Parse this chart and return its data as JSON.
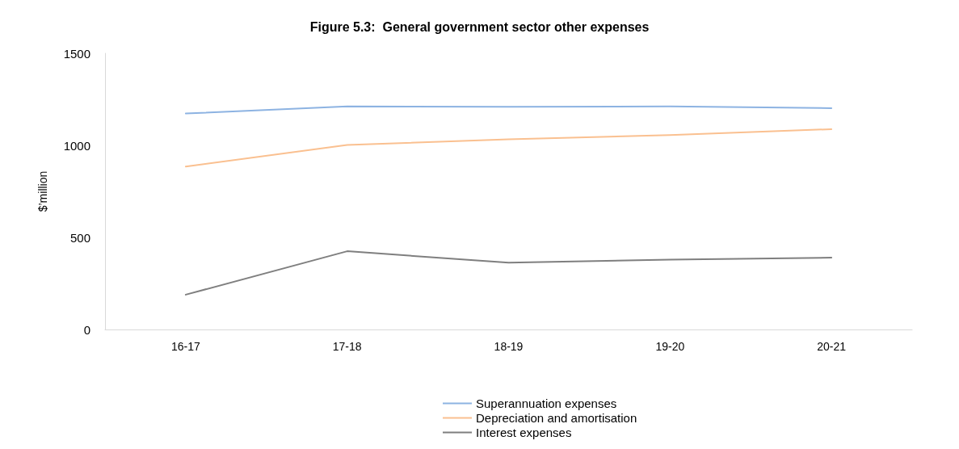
{
  "chart_data": {
    "type": "line",
    "title": "Figure 5.3:  General government sector other expenses",
    "ylabel": "$’million",
    "categories": [
      "16-17",
      "17-18",
      "18-19",
      "19-20",
      "20-21"
    ],
    "series": [
      {
        "name": "Superannuation expenses",
        "color": "#8db3e2",
        "values": [
          1173,
          1212,
          1209,
          1212,
          1202
        ]
      },
      {
        "name": "Depreciation and amortisation",
        "color": "#fac090",
        "values": [
          885,
          1002,
          1033,
          1056,
          1088
        ]
      },
      {
        "name": "Interest expenses",
        "color": "#7f7f7f",
        "values": [
          189,
          425,
          363,
          379,
          390
        ]
      }
    ],
    "ylim": [
      0,
      1500
    ],
    "yticks": [
      0,
      500,
      1000,
      1500
    ],
    "grid": false,
    "legend": "bottom",
    "marker": "none",
    "line_style": "solid"
  }
}
